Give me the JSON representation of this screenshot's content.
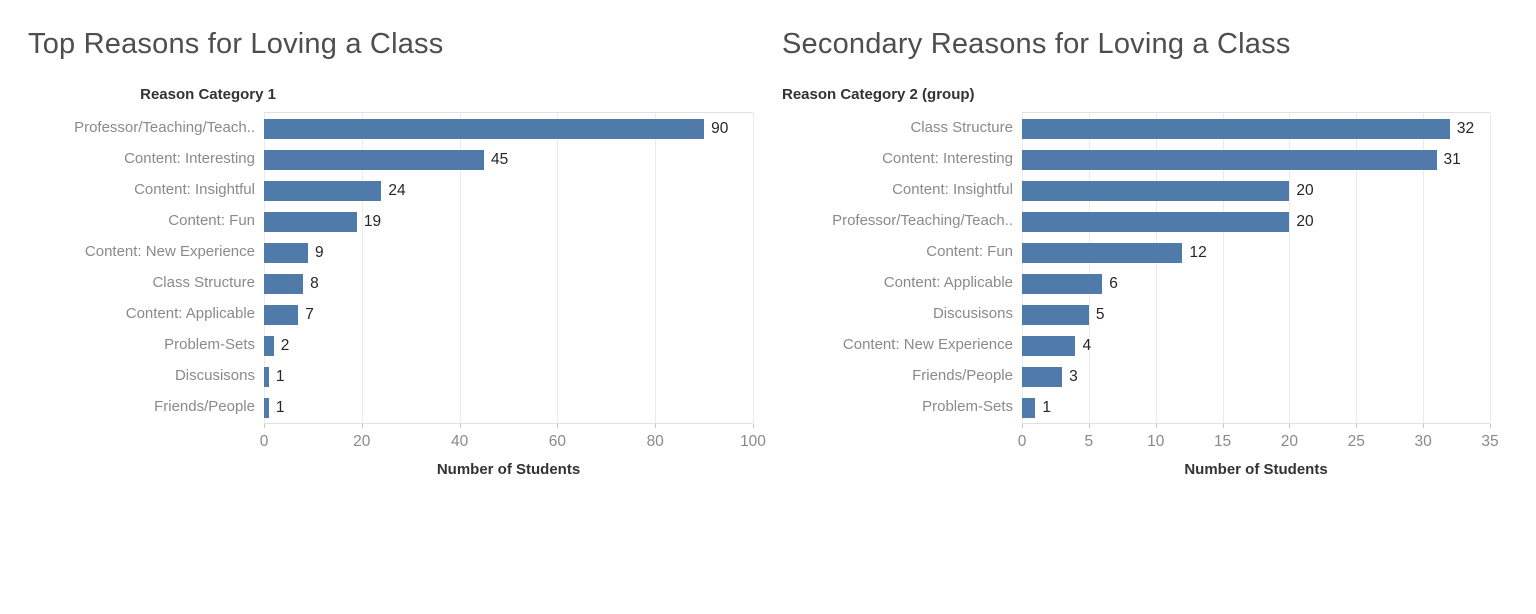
{
  "page": {
    "background": "#ffffff"
  },
  "chart_data": [
    {
      "type": "bar",
      "orientation": "horizontal",
      "title": "Top Reasons for Loving a Class",
      "field_label": "Reason Category 1",
      "categories": [
        "Professor/Teaching/Teach..",
        "Content: Interesting",
        "Content: Insightful",
        "Content: Fun",
        "Content: New Experience",
        "Class Structure",
        "Content: Applicable",
        "Problem-Sets",
        "Discusisons",
        "Friends/People"
      ],
      "values": [
        90,
        45,
        24,
        19,
        9,
        8,
        7,
        2,
        1,
        1
      ],
      "xlabel": "Number of Students",
      "ylabel": "Reason Category 1",
      "xlim": [
        0,
        100
      ],
      "xticks": [
        0,
        20,
        40,
        60,
        80,
        100
      ],
      "bar_color": "#4f7aa9",
      "value_labels": true,
      "grid": "vertical"
    },
    {
      "type": "bar",
      "orientation": "horizontal",
      "title": "Secondary Reasons for Loving a Class",
      "field_label": "Reason Category 2 (group)",
      "categories": [
        "Class Structure",
        "Content: Interesting",
        "Content: Insightful",
        "Professor/Teaching/Teach..",
        "Content: Fun",
        "Content: Applicable",
        "Discusisons",
        "Content: New Experience",
        "Friends/People",
        "Problem-Sets"
      ],
      "values": [
        32,
        31,
        20,
        20,
        12,
        6,
        5,
        4,
        3,
        1
      ],
      "xlabel": "Number of Students",
      "ylabel": "Reason Category 2 (group)",
      "xlim": [
        0,
        35
      ],
      "xticks": [
        0,
        5,
        10,
        15,
        20,
        25,
        30,
        35
      ],
      "bar_color": "#4f7aa9",
      "value_labels": true,
      "grid": "vertical"
    }
  ]
}
